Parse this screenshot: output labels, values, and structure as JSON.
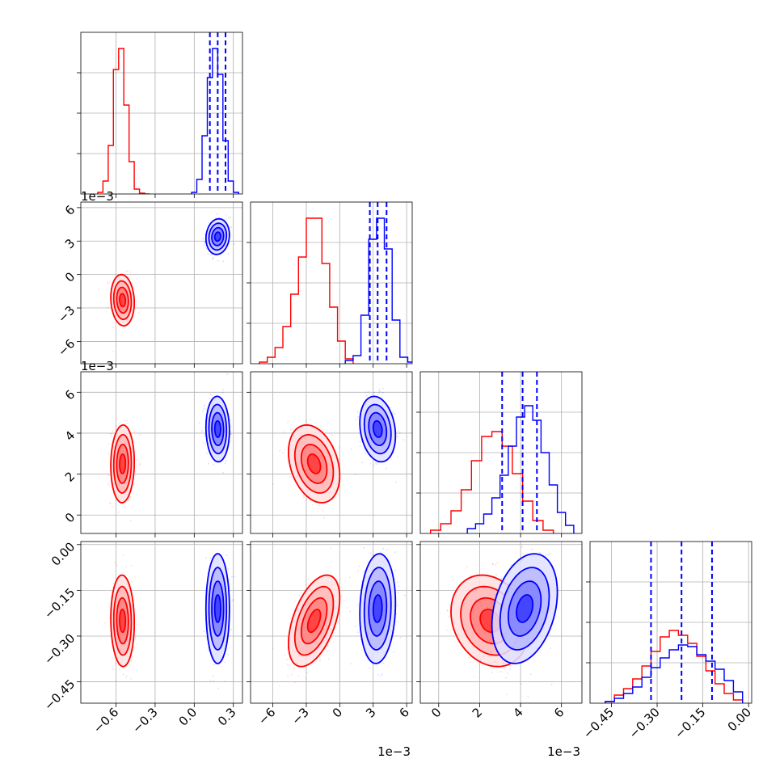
{
  "chart_data": {
    "type": "corner",
    "title": "",
    "parameters": [
      {
        "ticks": [
          -0.6,
          -0.3,
          0.0,
          0.3
        ],
        "tick_labels": [
          "−0.6",
          "−0.3",
          "0.0",
          "0.3"
        ],
        "range": [
          -0.87,
          0.37
        ],
        "offset": ""
      },
      {
        "ticks": [
          -6,
          -3,
          0,
          3,
          6
        ],
        "tick_labels": [
          "−6",
          "−3",
          "0",
          "3",
          "6"
        ],
        "range": [
          -8.0,
          6.5
        ],
        "offset": "1e−3"
      },
      {
        "ticks": [
          0,
          2,
          4,
          6
        ],
        "tick_labels": [
          "0",
          "2",
          "4",
          "6"
        ],
        "range": [
          -0.9,
          7.0
        ],
        "offset": "1e−3"
      },
      {
        "ticks": [
          -0.45,
          -0.3,
          -0.15,
          0.0
        ],
        "tick_labels": [
          "−0.45",
          "−0.30",
          "−0.15",
          "0.00"
        ],
        "range": [
          -0.52,
          0.01
        ],
        "offset": ""
      }
    ],
    "series": [
      {
        "name": "",
        "color": "#ff0000",
        "means": [
          -0.55,
          -2.3,
          2.5,
          -0.25
        ],
        "sds": [
          0.045,
          1.15,
          0.95,
          0.075
        ],
        "correlations": [
          [
            0,
            1,
            -0.1
          ],
          [
            0,
            2,
            0.05
          ],
          [
            0,
            3,
            -0.05
          ],
          [
            1,
            2,
            -0.3
          ],
          [
            1,
            3,
            0.5
          ],
          [
            2,
            3,
            -0.2
          ]
        ],
        "histograms": [
          {
            "edges": [
              -0.74,
              -0.7,
              -0.66,
              -0.62,
              -0.58,
              -0.54,
              -0.5,
              -0.46,
              -0.42,
              -0.38,
              -0.34
            ],
            "values": [
              0.01,
              0.08,
              0.3,
              0.77,
              0.9,
              0.55,
              0.2,
              0.03,
              0.005,
              0.0
            ]
          },
          {
            "edges": [
              -7.2,
              -6.5,
              -5.8,
              -5.1,
              -4.4,
              -3.7,
              -3.0,
              -2.3,
              -1.6,
              -0.9,
              -0.2,
              0.5,
              1.2
            ],
            "values": [
              0.01,
              0.04,
              0.1,
              0.23,
              0.43,
              0.66,
              0.9,
              0.9,
              0.62,
              0.35,
              0.14,
              0.03
            ]
          },
          {
            "edges": [
              -0.4,
              0.1,
              0.6,
              1.1,
              1.6,
              2.1,
              2.6,
              3.1,
              3.6,
              4.1,
              4.6,
              5.1,
              5.6
            ],
            "values": [
              0.02,
              0.06,
              0.14,
              0.27,
              0.45,
              0.6,
              0.63,
              0.54,
              0.37,
              0.2,
              0.08,
              0.02
            ]
          },
          {
            "edges": [
              -0.47,
              -0.44,
              -0.41,
              -0.38,
              -0.35,
              -0.32,
              -0.29,
              -0.26,
              -0.23,
              -0.2,
              -0.17,
              -0.14,
              -0.11,
              -0.08,
              -0.05,
              -0.02
            ],
            "values": [
              0.01,
              0.05,
              0.09,
              0.15,
              0.23,
              0.32,
              0.41,
              0.45,
              0.42,
              0.37,
              0.29,
              0.2,
              0.12,
              0.06,
              0.02
            ]
          }
        ]
      },
      {
        "name": "",
        "color": "#0000ff",
        "means": [
          0.18,
          3.4,
          4.2,
          -0.21
        ],
        "sds": [
          0.045,
          0.8,
          0.8,
          0.09
        ],
        "correlations": [
          [
            0,
            1,
            0.1
          ],
          [
            0,
            2,
            -0.05
          ],
          [
            0,
            3,
            0.0
          ],
          [
            1,
            2,
            -0.2
          ],
          [
            1,
            3,
            0.1
          ],
          [
            2,
            3,
            0.3
          ]
        ],
        "quantiles": [
          [
            0.12,
            0.18,
            0.24
          ],
          [
            2.7,
            3.4,
            4.2
          ],
          [
            3.1,
            4.1,
            4.8
          ],
          [
            -0.32,
            -0.22,
            -0.12
          ]
        ],
        "histograms": [
          {
            "edges": [
              -0.02,
              0.02,
              0.06,
              0.1,
              0.14,
              0.18,
              0.22,
              0.26,
              0.3,
              0.34
            ],
            "values": [
              0.01,
              0.09,
              0.36,
              0.72,
              0.9,
              0.74,
              0.33,
              0.08,
              0.01
            ]
          },
          {
            "edges": [
              0.5,
              1.2,
              1.9,
              2.6,
              3.3,
              4.0,
              4.7,
              5.4,
              6.1,
              6.8
            ],
            "values": [
              0.02,
              0.05,
              0.3,
              0.77,
              0.9,
              0.71,
              0.27,
              0.04,
              0.01
            ]
          },
          {
            "edges": [
              1.4,
              1.8,
              2.2,
              2.6,
              3.0,
              3.4,
              3.8,
              4.2,
              4.6,
              5.0,
              5.4,
              5.8,
              6.2,
              6.6
            ],
            "values": [
              0.03,
              0.06,
              0.12,
              0.22,
              0.36,
              0.54,
              0.72,
              0.79,
              0.7,
              0.5,
              0.3,
              0.13,
              0.05
            ]
          },
          {
            "edges": [
              -0.47,
              -0.44,
              -0.41,
              -0.38,
              -0.35,
              -0.32,
              -0.29,
              -0.26,
              -0.23,
              -0.2,
              -0.17,
              -0.14,
              -0.11,
              -0.08,
              -0.05,
              -0.02
            ],
            "values": [
              0.01,
              0.03,
              0.06,
              0.1,
              0.16,
              0.22,
              0.28,
              0.33,
              0.36,
              0.35,
              0.3,
              0.26,
              0.21,
              0.14,
              0.07
            ]
          }
        ]
      }
    ],
    "contour_levels_sigma": [
      0.5,
      1.0,
      1.5,
      2.0
    ],
    "grid": true,
    "legend": "none"
  }
}
